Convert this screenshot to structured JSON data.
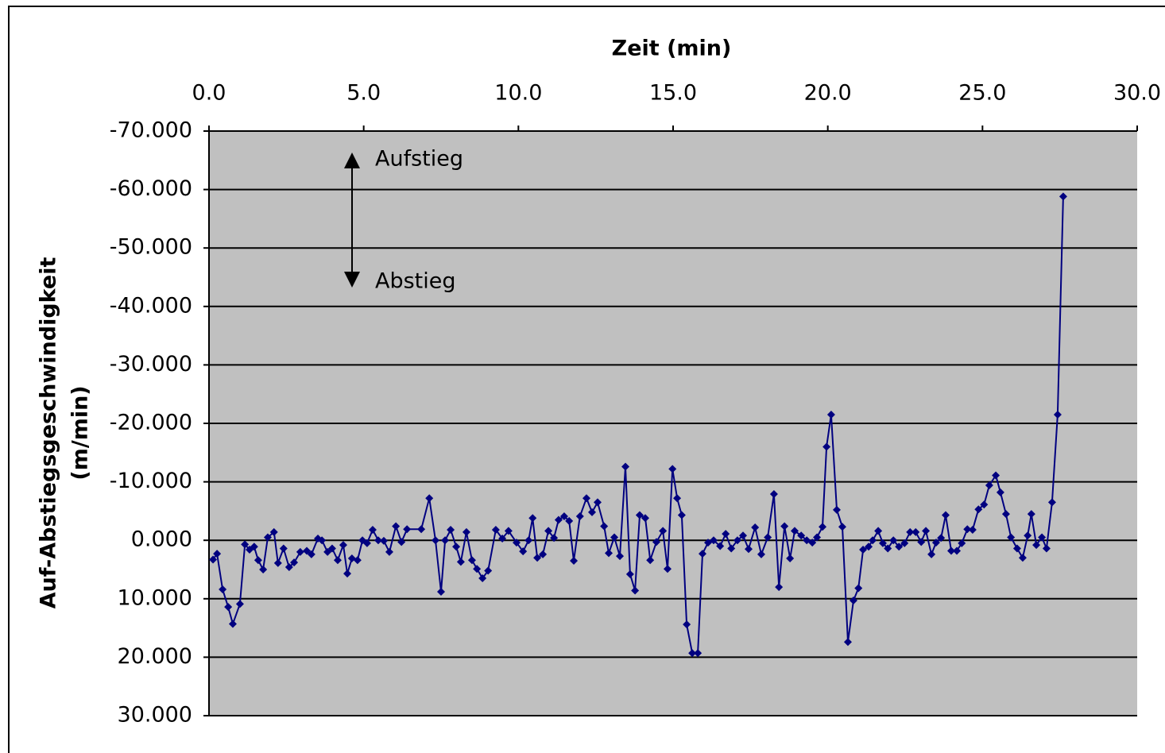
{
  "chart_data": {
    "type": "line",
    "title": "Zeit (min)",
    "ylabel": [
      "Auf-Abstiegsgeschwindigkeit",
      "(m/min)"
    ],
    "annotations": [
      "Aufstieg",
      "Abstieg"
    ],
    "x": [
      0.13,
      0.26,
      0.44,
      0.62,
      0.77,
      1.0,
      1.16,
      1.31,
      1.46,
      1.59,
      1.75,
      1.9,
      2.1,
      2.23,
      2.41,
      2.59,
      2.75,
      2.95,
      3.16,
      3.31,
      3.52,
      3.65,
      3.83,
      3.98,
      4.16,
      4.34,
      4.47,
      4.62,
      4.8,
      4.96,
      5.11,
      5.29,
      5.47,
      5.65,
      5.83,
      6.04,
      6.22,
      6.4,
      6.86,
      7.12,
      7.32,
      7.5,
      7.63,
      7.81,
      7.99,
      8.14,
      8.32,
      8.5,
      8.66,
      8.84,
      9.02,
      9.27,
      9.48,
      9.68,
      9.94,
      10.15,
      10.33,
      10.46,
      10.61,
      10.79,
      10.97,
      11.15,
      11.3,
      11.48,
      11.64,
      11.79,
      11.99,
      12.2,
      12.38,
      12.56,
      12.77,
      12.92,
      13.1,
      13.28,
      13.46,
      13.61,
      13.77,
      13.92,
      14.1,
      14.26,
      14.46,
      14.67,
      14.82,
      14.98,
      15.13,
      15.28,
      15.44,
      15.62,
      15.8,
      15.95,
      16.13,
      16.31,
      16.52,
      16.7,
      16.88,
      17.08,
      17.26,
      17.44,
      17.65,
      17.85,
      18.06,
      18.26,
      18.42,
      18.6,
      18.78,
      18.93,
      19.14,
      19.32,
      19.5,
      19.65,
      19.83,
      19.96,
      20.11,
      20.29,
      20.47,
      20.65,
      20.83,
      20.99,
      21.14,
      21.32,
      21.45,
      21.63,
      21.78,
      21.94,
      22.12,
      22.3,
      22.48,
      22.66,
      22.84,
      23.02,
      23.17,
      23.35,
      23.5,
      23.66,
      23.81,
      23.99,
      24.17,
      24.33,
      24.51,
      24.68,
      24.87,
      25.05,
      25.22,
      25.43,
      25.58,
      25.76,
      25.92,
      26.12,
      26.3,
      26.46,
      26.58,
      26.74,
      26.92,
      27.07,
      27.25,
      27.43,
      27.61
    ],
    "series": [
      {
        "color": "#000080",
        "values": [
          3.3,
          2.3,
          8.4,
          11.4,
          14.3,
          10.9,
          0.7,
          1.6,
          1.1,
          3.4,
          5.0,
          -0.5,
          -1.4,
          3.9,
          1.4,
          4.6,
          3.8,
          2.0,
          1.8,
          2.4,
          -0.3,
          0,
          2.0,
          1.4,
          3.4,
          0.8,
          5.7,
          3.1,
          3.4,
          0,
          0.5,
          -1.8,
          0,
          0.1,
          2.0,
          -2.4,
          0.3,
          -1.9,
          -1.9,
          -7.2,
          0,
          8.8,
          0,
          -1.8,
          1.1,
          3.7,
          -1.4,
          3.4,
          4.9,
          6.5,
          5.2,
          -1.8,
          -0.3,
          -1.6,
          0.4,
          1.9,
          0,
          -3.8,
          3.0,
          2.4,
          -1.6,
          -0.4,
          -3.5,
          -4.1,
          -3.3,
          3.5,
          -4.1,
          -7.2,
          -4.8,
          -6.5,
          -2.4,
          2.2,
          -0.5,
          2.7,
          -12.6,
          5.8,
          8.6,
          -4.3,
          -3.8,
          3.4,
          0.3,
          -1.6,
          4.9,
          -12.2,
          -7.2,
          -4.3,
          14.4,
          19.3,
          19.3,
          2.3,
          0.4,
          0,
          1.0,
          -1.1,
          1.4,
          0,
          -0.8,
          1.5,
          -2.2,
          2.4,
          -0.5,
          -7.9,
          8.0,
          -2.4,
          3.1,
          -1.6,
          -0.8,
          0,
          0.4,
          -0.5,
          -2.3,
          -16.0,
          -21.5,
          -5.2,
          -2.3,
          17.4,
          10.3,
          8.2,
          1.6,
          1.1,
          0,
          -1.6,
          0.5,
          1.4,
          0,
          1.1,
          0.5,
          -1.4,
          -1.4,
          0.3,
          -1.6,
          2.4,
          0.4,
          -0.4,
          -4.3,
          1.8,
          1.8,
          0.5,
          -1.9,
          -1.8,
          -5.3,
          -6.1,
          -9.4,
          -11.1,
          -8.2,
          -4.5,
          -0.5,
          1.4,
          3.0,
          -0.8,
          -4.5,
          0.8,
          -0.5,
          1.4,
          -6.5,
          -21.5,
          -58.8
        ]
      }
    ],
    "xlim": [
      0,
      30
    ],
    "xticks": [
      {
        "value": 0,
        "label": "0.0"
      },
      {
        "value": 5,
        "label": "5.0"
      },
      {
        "value": 10,
        "label": "10.0"
      },
      {
        "value": 15,
        "label": "15.0"
      },
      {
        "value": 20,
        "label": "20.0"
      },
      {
        "value": 25,
        "label": "25.0"
      },
      {
        "value": 30,
        "label": "30.0"
      }
    ],
    "ylim": [
      -70,
      30
    ],
    "yticks": [
      {
        "value": -70,
        "label": "-70.000"
      },
      {
        "value": -60,
        "label": "-60.000"
      },
      {
        "value": -50,
        "label": "-50.000"
      },
      {
        "value": -40,
        "label": "-40.000"
      },
      {
        "value": -30,
        "label": "-30.000"
      },
      {
        "value": -20,
        "label": "-20.000"
      },
      {
        "value": -10,
        "label": "-10.000"
      },
      {
        "value": 0,
        "label": "0.000"
      },
      {
        "value": 10,
        "label": "10.000"
      },
      {
        "value": 20,
        "label": "20.000"
      },
      {
        "value": 30,
        "label": "30.000"
      }
    ],
    "y_reversed": true,
    "grid": true,
    "plot_background": "#c0c0c0"
  }
}
